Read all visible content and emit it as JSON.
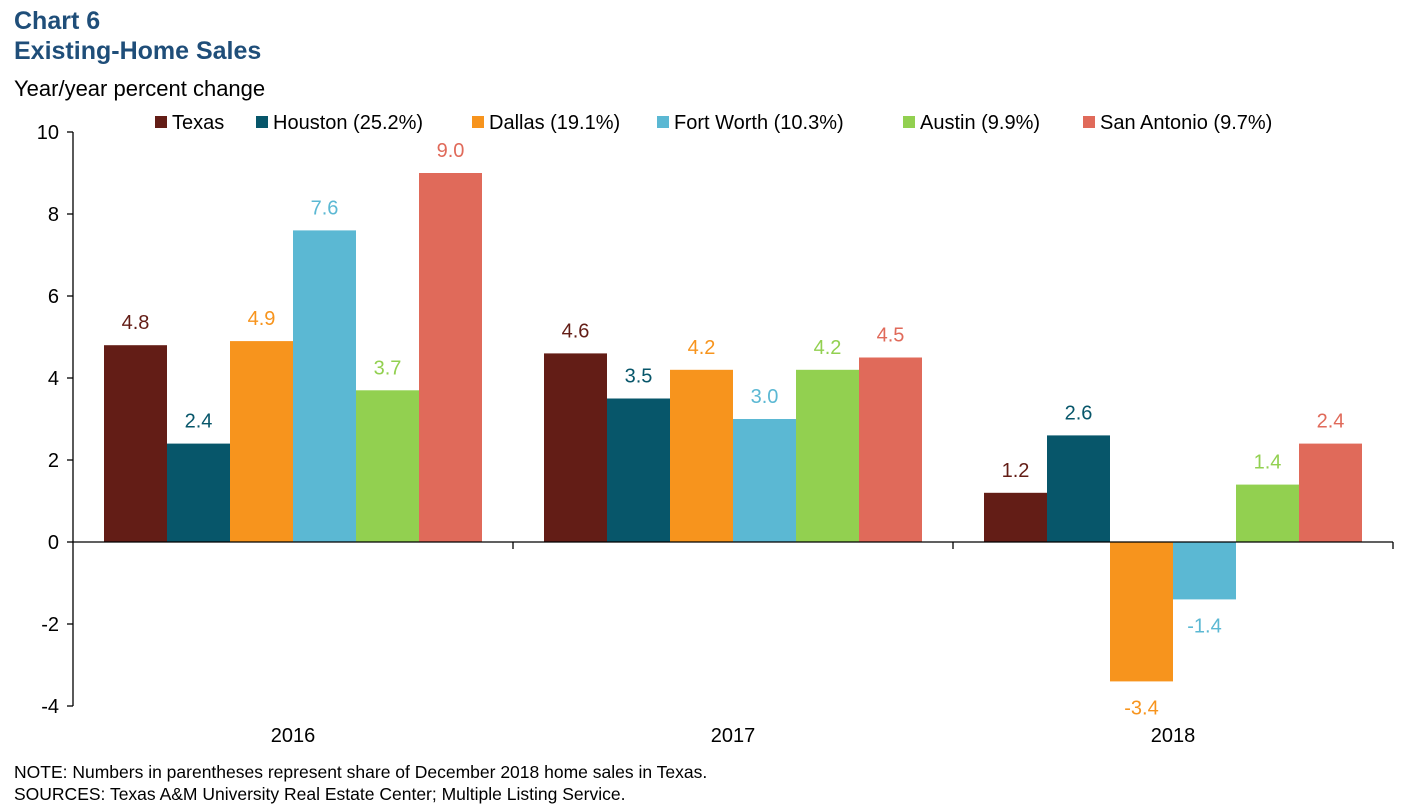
{
  "header": {
    "chart_number": "Chart 6",
    "title": "Existing-Home Sales",
    "ylabel": "Year/year percent change"
  },
  "footer": {
    "note": "NOTE: Numbers in parentheses represent share of December 2018 home sales in Texas.",
    "sources": "SOURCES: Texas A&M University Real Estate Center; Multiple Listing Service."
  },
  "chart_data": {
    "type": "bar",
    "title": "Existing-Home Sales",
    "ylabel": "Year/year percent change",
    "xlabel": "",
    "categories": [
      "2016",
      "2017",
      "2018"
    ],
    "ylim": [
      -4,
      10
    ],
    "yticks": [
      -4,
      -2,
      0,
      2,
      4,
      6,
      8,
      10
    ],
    "legend_position": "top",
    "grid": false,
    "series": [
      {
        "name": "Texas",
        "color": "#631d16",
        "values": [
          4.8,
          4.6,
          1.2
        ]
      },
      {
        "name": "Houston (25.2%)",
        "color": "#07566a",
        "values": [
          2.4,
          3.5,
          2.6
        ]
      },
      {
        "name": "Dallas (19.1%)",
        "color": "#f7941d",
        "values": [
          4.9,
          4.2,
          -3.4
        ]
      },
      {
        "name": "Fort Worth (10.3%)",
        "color": "#5bb8d3",
        "values": [
          7.6,
          3.0,
          -1.4
        ]
      },
      {
        "name": "Austin (9.9%)",
        "color": "#92d050",
        "values": [
          3.7,
          4.2,
          1.4
        ]
      },
      {
        "name": "San Antonio (9.7%)",
        "color": "#e06a5a",
        "values": [
          9.0,
          4.5,
          2.4
        ]
      }
    ]
  }
}
